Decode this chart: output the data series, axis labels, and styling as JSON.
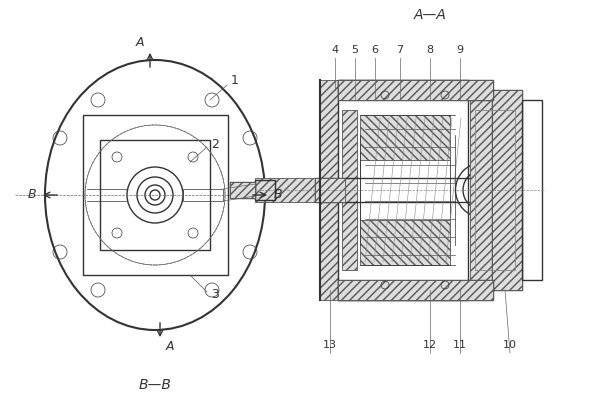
{
  "title_aa": "A—A",
  "title_bb": "B—B",
  "bg_color": "#ffffff",
  "line_color": "#333333",
  "hatch_color": "#555555",
  "label_1": "1",
  "label_2": "2",
  "label_3": "3",
  "label_4": "4",
  "label_5": "5",
  "label_6": "6",
  "label_7": "7",
  "label_8": "8",
  "label_9": "9",
  "label_10": "10",
  "label_11": "11",
  "label_12": "12",
  "label_13": "13",
  "label_A_top": "A",
  "label_A_bot": "A",
  "label_B_left": "B",
  "label_B_right": "B",
  "arrow_color": "#333333",
  "section_line_color": "#555555"
}
